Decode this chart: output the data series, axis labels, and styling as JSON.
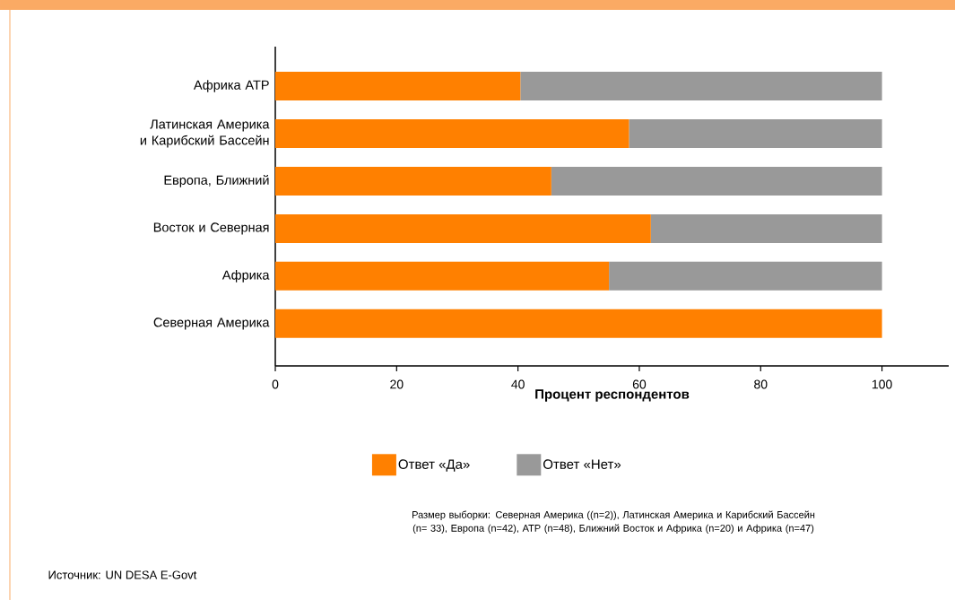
{
  "chart_data": {
    "type": "bar",
    "orientation": "horizontal",
    "stacked": true,
    "categories": [
      "Африка АТР",
      "Латинская Америка и Карибский Бассейн",
      "Европа, Ближний",
      "Восток и Северная",
      "Африка",
      "Северная Америка"
    ],
    "series": [
      {
        "name": "Ответ «Да»",
        "color": "#ff8000",
        "values": [
          40.4,
          58.3,
          45.5,
          61.9,
          55.0,
          100
        ]
      },
      {
        "name": "Ответ «Нет»",
        "color": "#999999",
        "values": [
          59.6,
          41.7,
          54.5,
          38.1,
          45.0,
          0
        ]
      }
    ],
    "xlabel": "Процент респондентов",
    "xlim": [
      0,
      111
    ],
    "xticks": [
      0,
      20,
      40,
      60,
      80,
      100
    ],
    "legend": "bottom",
    "annotations": [
      "Размер выборки: Северная Америка ((n=2)), Латинская Америка и Карибский Бассейн (n= 33), Европа (n=42), АТР (n=48), Ближний Восток и Африка (n=20) и Африка (n=47)",
      "Источник: UN DESA E-Govt"
    ]
  }
}
